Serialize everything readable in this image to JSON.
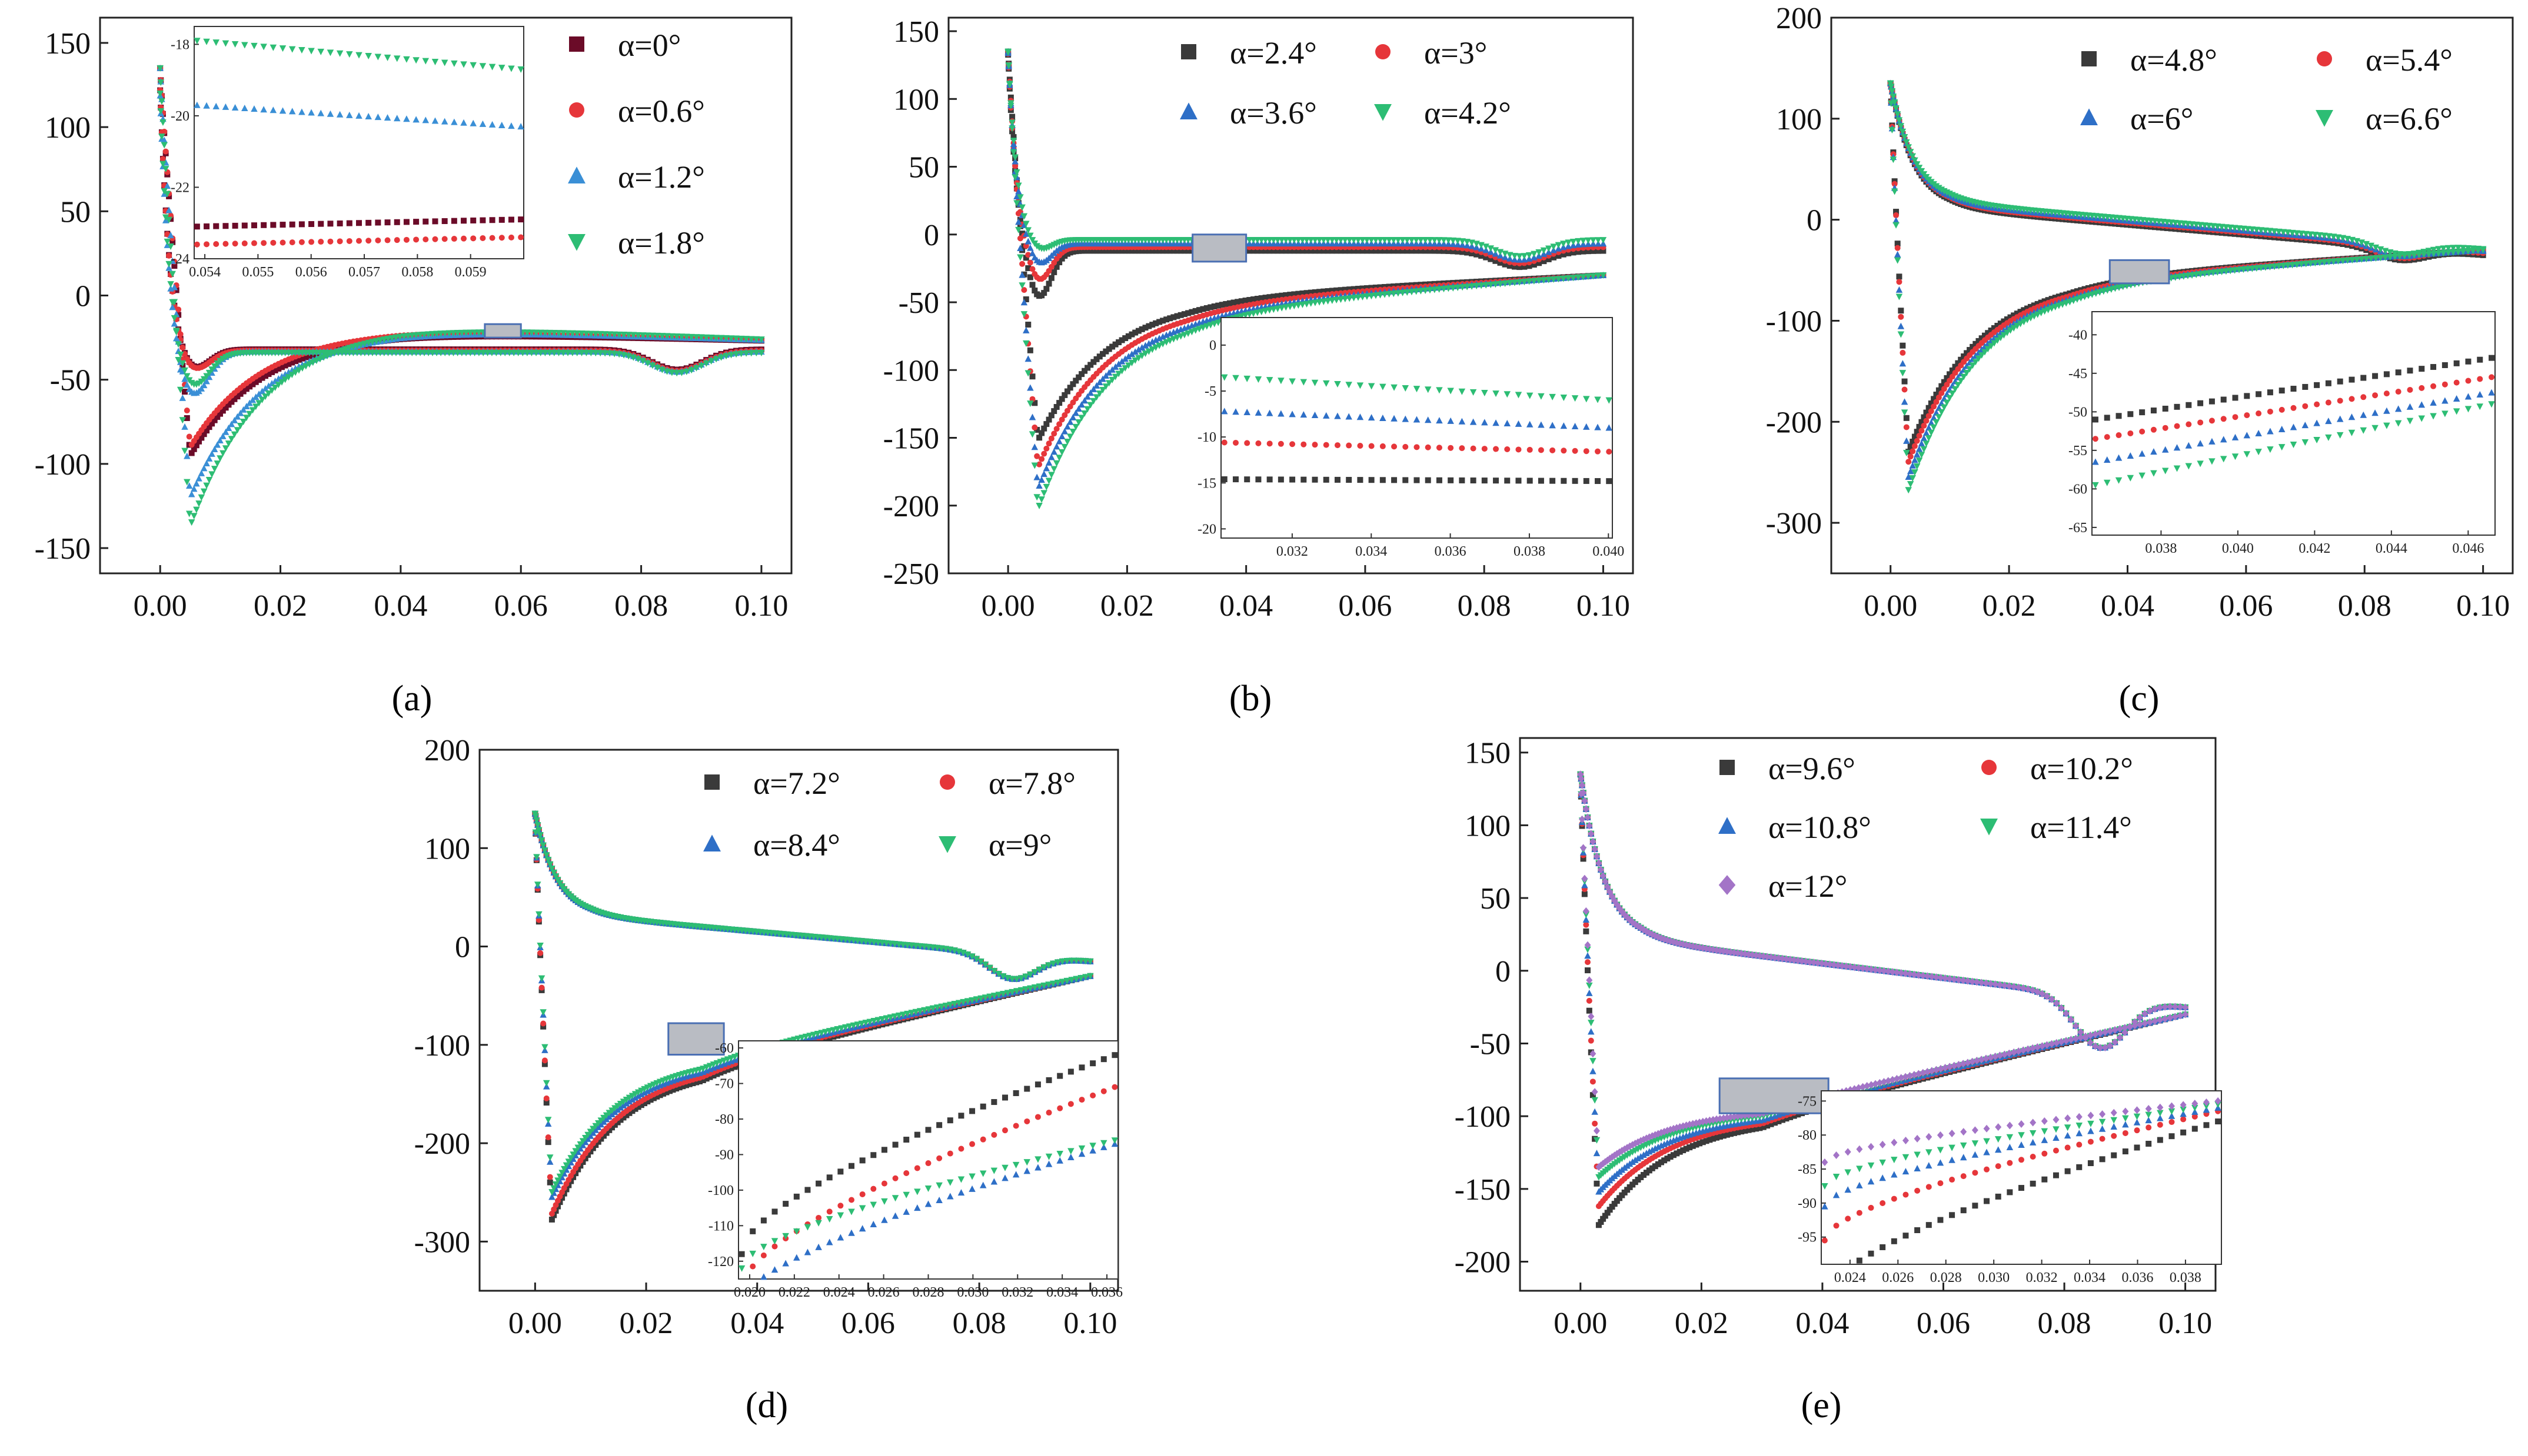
{
  "figure": {
    "panel_labels": [
      "(a)",
      "(b)",
      "(c)",
      "(d)",
      "(e)"
    ]
  },
  "chart_data": [
    {
      "panel": "a",
      "type": "scatter",
      "xlim": [
        -0.01,
        0.105
      ],
      "ylim": [
        -165,
        165
      ],
      "xticks": [
        "0.00",
        "0.02",
        "0.04",
        "0.06",
        "0.08",
        "0.10"
      ],
      "xtick_values": [
        0,
        0.02,
        0.04,
        0.06,
        0.08,
        0.1
      ],
      "yticks": [
        "150",
        "100",
        "50",
        "0",
        "-50",
        "-100",
        "-150"
      ],
      "ytick_values": [
        150,
        100,
        50,
        0,
        -50,
        -100,
        -150
      ],
      "legend_position": "top-right",
      "legend_columns": 1,
      "series": [
        {
          "name": "α=0°",
          "color": "#6b0b28",
          "marker": "square",
          "min_cp": -95,
          "upper_level": -45,
          "lower_level": -22,
          "upper_min": -35
        },
        {
          "name": "α=0.6°",
          "color": "#e6363a",
          "marker": "circle",
          "min_cp": -90,
          "upper_level": -48,
          "lower_level": -20,
          "upper_min": -35
        },
        {
          "name": "α=1.2°",
          "color": "#3a8fd6",
          "marker": "triangle-up",
          "min_cp": -120,
          "upper_level": -60,
          "lower_level": -20,
          "upper_min": -60
        },
        {
          "name": "α=1.8°",
          "color": "#2dbd74",
          "marker": "triangle-down",
          "min_cp": -137,
          "upper_level": -70,
          "lower_level": -18,
          "upper_min": -50
        }
      ],
      "zoom_box": {
        "x": [
          0.054,
          0.06
        ],
        "y": [
          -25,
          -17
        ]
      },
      "inset": {
        "position": "top-left",
        "xlim": [
          0.0538,
          0.06
        ],
        "ylim": [
          -24,
          -17.5
        ],
        "xticks": [
          "0.054",
          "0.055",
          "0.056",
          "0.057",
          "0.058",
          "0.059"
        ],
        "xtick_values": [
          0.054,
          0.055,
          0.056,
          0.057,
          0.058,
          0.059
        ],
        "yticks": [
          "-18",
          "-20",
          "-22",
          "-24"
        ],
        "ytick_values": [
          -18,
          -20,
          -22,
          -24
        ],
        "series_lines": [
          {
            "series": 0,
            "y0": -23.1,
            "y1": -22.9
          },
          {
            "series": 1,
            "y0": -23.6,
            "y1": -23.4
          },
          {
            "series": 2,
            "y0": -19.7,
            "y1": -20.3
          },
          {
            "series": 3,
            "y0": -17.9,
            "y1": -18.7
          }
        ]
      }
    },
    {
      "panel": "b",
      "type": "scatter",
      "xlim": [
        -0.01,
        0.105
      ],
      "ylim": [
        -250,
        160
      ],
      "xticks": [
        "0.00",
        "0.02",
        "0.04",
        "0.06",
        "0.08",
        "0.10"
      ],
      "xtick_values": [
        0,
        0.02,
        0.04,
        0.06,
        0.08,
        0.1
      ],
      "yticks": [
        "150",
        "100",
        "50",
        "0",
        "-50",
        "-100",
        "-150",
        "-200",
        "-250"
      ],
      "ytick_values": [
        150,
        100,
        50,
        0,
        -50,
        -100,
        -150,
        -200,
        -250
      ],
      "legend_position": "top-right",
      "legend_columns": 2,
      "series": [
        {
          "name": "α=2.4°",
          "color": "#3a3a3a",
          "marker": "square",
          "min_cp": -152,
          "upper_dip": -38
        },
        {
          "name": "α=3°",
          "color": "#e6363a",
          "marker": "circle",
          "min_cp": -172,
          "upper_dip": -28
        },
        {
          "name": "α=3.6°",
          "color": "#2e6fc7",
          "marker": "triangle-up",
          "min_cp": -188,
          "upper_dip": -18
        },
        {
          "name": "α=4.2°",
          "color": "#2dbd74",
          "marker": "triangle-down",
          "min_cp": -203,
          "upper_dip": -10
        }
      ],
      "zoom_box": {
        "x": [
          0.031,
          0.04
        ],
        "y": [
          -20,
          0
        ]
      },
      "inset": {
        "position": "bottom-right",
        "xlim": [
          0.0302,
          0.0401
        ],
        "ylim": [
          -21,
          3
        ],
        "xticks": [
          "0.032",
          "0.034",
          "0.036",
          "0.038",
          "0.040"
        ],
        "xtick_values": [
          0.032,
          0.034,
          0.036,
          0.038,
          0.04
        ],
        "yticks": [
          "0",
          "-5",
          "-10",
          "-15",
          "-20"
        ],
        "ytick_values": [
          0,
          -5,
          -10,
          -15,
          -20
        ],
        "series_lines": [
          {
            "series": 0,
            "y0": -14.6,
            "y1": -14.8
          },
          {
            "series": 1,
            "y0": -10.6,
            "y1": -11.6
          },
          {
            "series": 2,
            "y0": -7.2,
            "y1": -9.0
          },
          {
            "series": 3,
            "y0": -3.5,
            "y1": -6.0
          }
        ]
      }
    },
    {
      "panel": "c",
      "type": "scatter",
      "xlim": [
        -0.01,
        0.105
      ],
      "ylim": [
        -350,
        200
      ],
      "xticks": [
        "0.00",
        "0.02",
        "0.04",
        "0.06",
        "0.08",
        "0.10"
      ],
      "xtick_values": [
        0,
        0.02,
        0.04,
        0.06,
        0.08,
        0.1
      ],
      "yticks": [
        "200",
        "100",
        "0",
        "-100",
        "-200",
        "-300"
      ],
      "ytick_values": [
        200,
        100,
        0,
        -100,
        -200,
        -300
      ],
      "legend_position": "top-right",
      "legend_columns": 2,
      "series": [
        {
          "name": "α=4.8°",
          "color": "#3a3a3a",
          "marker": "square",
          "min_cp": -230
        },
        {
          "name": "α=5.4°",
          "color": "#e6363a",
          "marker": "circle",
          "min_cp": -240
        },
        {
          "name": "α=6°",
          "color": "#2e6fc7",
          "marker": "triangle-up",
          "min_cp": -255
        },
        {
          "name": "α=6.6°",
          "color": "#2dbd74",
          "marker": "triangle-down",
          "min_cp": -268
        }
      ],
      "zoom_box": {
        "x": [
          0.037,
          0.047
        ],
        "y": [
          -63,
          -40
        ]
      },
      "inset": {
        "position": "bottom-right",
        "xlim": [
          0.0362,
          0.0467
        ],
        "ylim": [
          -66,
          -37
        ],
        "xticks": [
          "0.038",
          "0.040",
          "0.042",
          "0.044",
          "0.046"
        ],
        "xtick_values": [
          0.038,
          0.04,
          0.042,
          0.044,
          0.046
        ],
        "yticks": [
          "-40",
          "-45",
          "-50",
          "-55",
          "-60",
          "-65"
        ],
        "ytick_values": [
          -40,
          -45,
          -50,
          -55,
          -60,
          -65
        ],
        "series_lines": [
          {
            "series": 0,
            "y0": -51,
            "y1": -43
          },
          {
            "series": 1,
            "y0": -53.5,
            "y1": -45.5
          },
          {
            "series": 2,
            "y0": -56.5,
            "y1": -47.5
          },
          {
            "series": 3,
            "y0": -59.5,
            "y1": -49
          }
        ]
      }
    },
    {
      "panel": "d",
      "type": "scatter",
      "xlim": [
        -0.01,
        0.105
      ],
      "ylim": [
        -350,
        200
      ],
      "xticks": [
        "0.00",
        "0.02",
        "0.04",
        "0.06",
        "0.08",
        "0.10"
      ],
      "xtick_values": [
        0,
        0.02,
        0.04,
        0.06,
        0.08,
        0.1
      ],
      "yticks": [
        "200",
        "100",
        "0",
        "-100",
        "-200",
        "-300"
      ],
      "ytick_values": [
        200,
        100,
        0,
        -100,
        -200,
        -300
      ],
      "legend_position": "top-right",
      "legend_columns": 2,
      "series": [
        {
          "name": "α=7.2°",
          "color": "#3a3a3a",
          "marker": "square",
          "min_cp": -278
        },
        {
          "name": "α=7.8°",
          "color": "#e6363a",
          "marker": "circle",
          "min_cp": -272
        },
        {
          "name": "α=8.4°",
          "color": "#2e6fc7",
          "marker": "triangle-up",
          "min_cp": -255
        },
        {
          "name": "α=9°",
          "color": "#2dbd74",
          "marker": "triangle-down",
          "min_cp": -250
        }
      ],
      "zoom_box": {
        "x": [
          0.024,
          0.034
        ],
        "y": [
          -110,
          -78
        ]
      },
      "inset": {
        "position": "bottom-right",
        "xlim": [
          0.0195,
          0.0365
        ],
        "ylim": [
          -125,
          -58
        ],
        "xticks": [
          "0.020",
          "0.022",
          "0.024",
          "0.026",
          "0.028",
          "0.030",
          "0.032",
          "0.034",
          "0.036"
        ],
        "xtick_values": [
          0.02,
          0.022,
          0.024,
          0.026,
          0.028,
          0.03,
          0.032,
          0.034,
          0.036
        ],
        "yticks": [
          "-60",
          "-70",
          "-80",
          "-90",
          "-100",
          "-110",
          "-120"
        ],
        "ytick_values": [
          -60,
          -70,
          -80,
          -90,
          -100,
          -110,
          -120
        ],
        "series_lines": [
          {
            "series": 0,
            "y0": -118,
            "y1": -62
          },
          {
            "series": 1,
            "y0": -128,
            "y1": -71
          },
          {
            "series": 2,
            "y0": -132,
            "y1": -87
          },
          {
            "series": 3,
            "y0": -122,
            "y1": -86
          }
        ]
      }
    },
    {
      "panel": "e",
      "type": "scatter",
      "xlim": [
        -0.01,
        0.105
      ],
      "ylim": [
        -220,
        160
      ],
      "xticks": [
        "0.00",
        "0.02",
        "0.04",
        "0.06",
        "0.08",
        "0.10"
      ],
      "xtick_values": [
        0,
        0.02,
        0.04,
        0.06,
        0.08,
        0.1
      ],
      "yticks": [
        "150",
        "100",
        "50",
        "0",
        "-50",
        "-100",
        "-150",
        "-200"
      ],
      "ytick_values": [
        150,
        100,
        50,
        0,
        -50,
        -100,
        -150,
        -200
      ],
      "legend_position": "top-right",
      "legend_columns": 2,
      "series": [
        {
          "name": "α=9.6°",
          "color": "#3a3a3a",
          "marker": "square",
          "min_cp": -175
        },
        {
          "name": "α=10.2°",
          "color": "#e6363a",
          "marker": "circle",
          "min_cp": -162
        },
        {
          "name": "α=10.8°",
          "color": "#2e6fc7",
          "marker": "triangle-up",
          "min_cp": -152
        },
        {
          "name": "α=11.4°",
          "color": "#2dbd74",
          "marker": "triangle-down",
          "min_cp": -142
        },
        {
          "name": "α=12°",
          "color": "#a374c7",
          "marker": "diamond",
          "min_cp": -135
        }
      ],
      "zoom_box": {
        "x": [
          0.023,
          0.041
        ],
        "y": [
          -98,
          -74
        ]
      },
      "inset": {
        "position": "bottom-right",
        "xlim": [
          0.0228,
          0.0395
        ],
        "ylim": [
          -99,
          -73.5
        ],
        "xticks": [
          "0.024",
          "0.026",
          "0.028",
          "0.030",
          "0.032",
          "0.034",
          "0.036",
          "0.038"
        ],
        "xtick_values": [
          0.024,
          0.026,
          0.028,
          0.03,
          0.032,
          0.034,
          0.036,
          0.038
        ],
        "yticks": [
          "-75",
          "-80",
          "-85",
          "-90",
          "-95"
        ],
        "ytick_values": [
          -75,
          -80,
          -85,
          -90,
          -95
        ],
        "series_lines": [
          {
            "series": 0,
            "y0": -104,
            "y1": -78
          },
          {
            "series": 1,
            "y0": -95.5,
            "y1": -76.5
          },
          {
            "series": 2,
            "y0": -90.5,
            "y1": -76
          },
          {
            "series": 3,
            "y0": -87.5,
            "y1": -75.5
          },
          {
            "series": 4,
            "y0": -84,
            "y1": -75
          }
        ]
      }
    }
  ]
}
